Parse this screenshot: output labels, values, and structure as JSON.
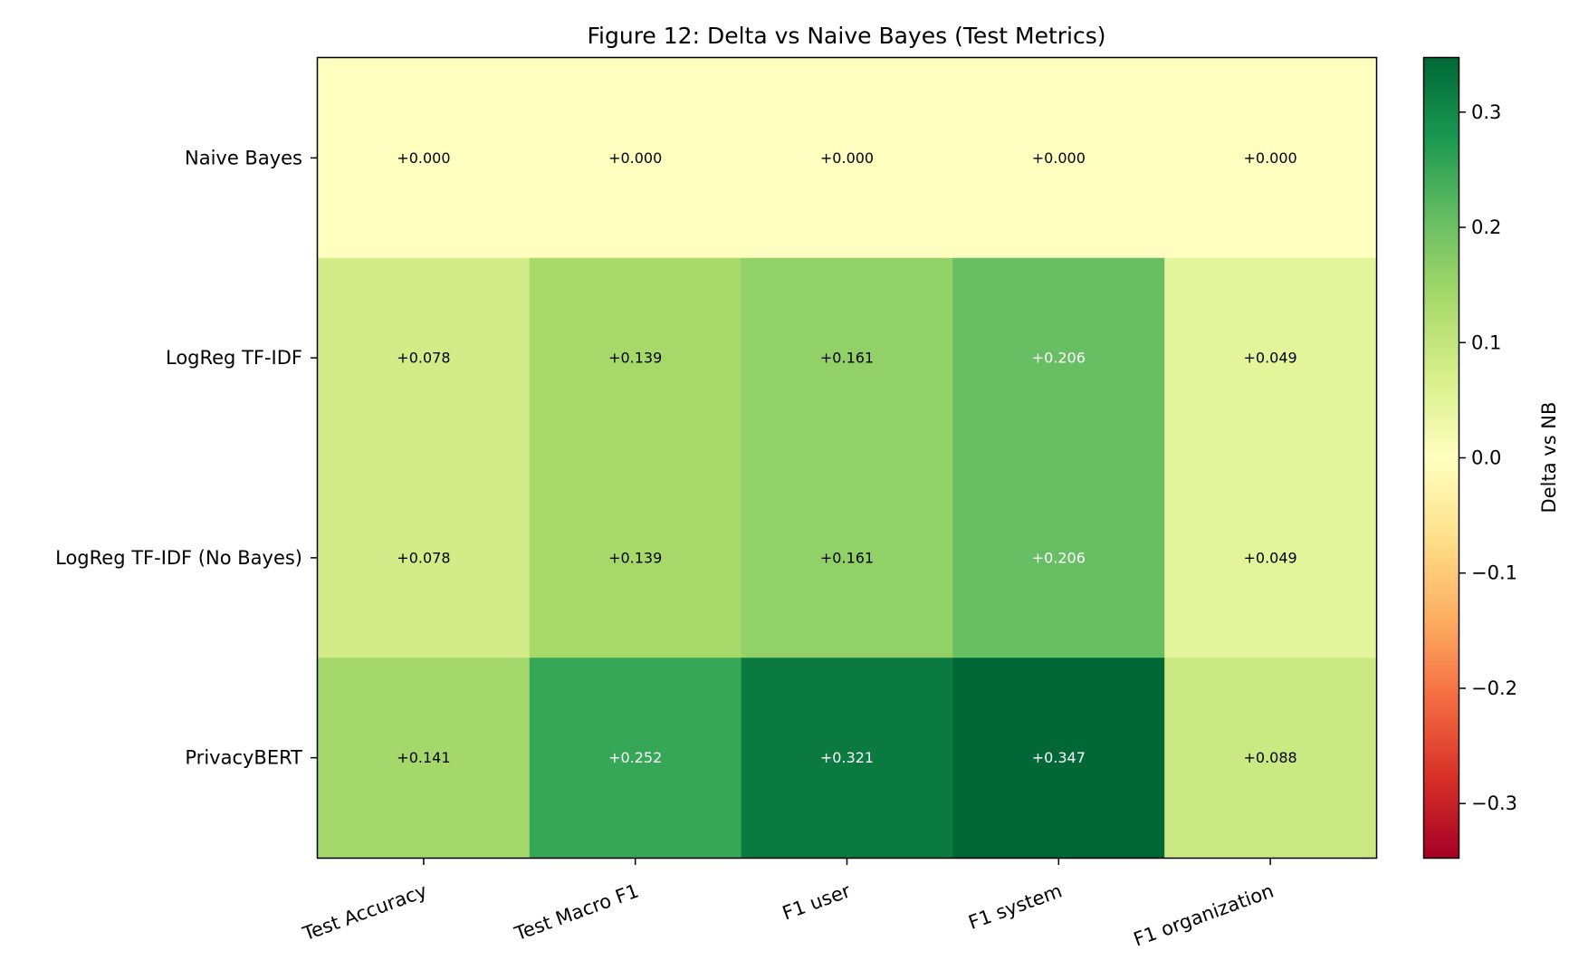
{
  "chart_data": {
    "type": "heatmap",
    "title": "Figure 12: Delta vs Naive Bayes (Test Metrics)",
    "rows": [
      "Naive Bayes",
      "LogReg TF-IDF",
      "LogReg TF-IDF (No Bayes)",
      "PrivacyBERT"
    ],
    "columns": [
      "Test Accuracy",
      "Test Macro F1",
      "F1 user",
      "F1 system",
      "F1 organization"
    ],
    "values": [
      [
        0.0,
        0.0,
        0.0,
        0.0,
        0.0
      ],
      [
        0.078,
        0.139,
        0.161,
        0.206,
        0.049
      ],
      [
        0.078,
        0.139,
        0.161,
        0.206,
        0.049
      ],
      [
        0.141,
        0.252,
        0.321,
        0.347,
        0.088
      ]
    ],
    "cell_labels": [
      [
        "+0.000",
        "+0.000",
        "+0.000",
        "+0.000",
        "+0.000"
      ],
      [
        "+0.078",
        "+0.139",
        "+0.161",
        "+0.206",
        "+0.049"
      ],
      [
        "+0.078",
        "+0.139",
        "+0.161",
        "+0.206",
        "+0.049"
      ],
      [
        "+0.141",
        "+0.252",
        "+0.321",
        "+0.347",
        "+0.088"
      ]
    ],
    "colormap": "RdYlGn",
    "vmin": -0.347,
    "vmax": 0.347,
    "colorbar": {
      "label": "Delta vs NB",
      "ticks": [
        0.3,
        0.2,
        0.1,
        0.0,
        -0.1,
        -0.2,
        -0.3
      ],
      "tick_labels": [
        "0.3",
        "0.2",
        "0.1",
        "0.0",
        "−0.1",
        "−0.2",
        "−0.3"
      ]
    },
    "xlabel": "",
    "ylabel": ""
  }
}
